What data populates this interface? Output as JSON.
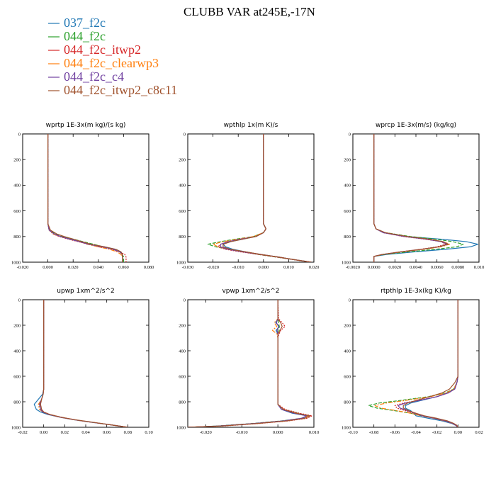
{
  "figure": {
    "title": "CLUBB VAR at245E,-17N"
  },
  "colors": {
    "037_f2c": "#1f77b4",
    "044_f2c": "#2ca02c",
    "044_f2c_itwp2": "#d62728",
    "044_f2c_clearwp3": "#ff7f0e",
    "044_f2c_c4": "#7040a0",
    "044_f2c_itwp2_c8c11": "#a0522d"
  },
  "chart_data": [
    {
      "type": "line",
      "title": "wprtp  1E-3x(m kg)/(s kg)",
      "xlim": [
        -0.02,
        0.08
      ],
      "ylim": [
        1000,
        0
      ],
      "xticks": [
        "-0.020",
        "0.000",
        "0.020",
        "0.040",
        "0.060",
        "0.080"
      ],
      "yticks": [
        "0",
        "200",
        "400",
        "600",
        "800",
        "1000"
      ],
      "y": [
        0,
        200,
        400,
        600,
        700,
        750,
        780,
        800,
        820,
        840,
        860,
        880,
        900,
        920,
        940,
        960,
        975,
        990,
        1000
      ],
      "series": [
        {
          "name": "037_f2c",
          "values": [
            0,
            0,
            0,
            0,
            0,
            0.001,
            0.005,
            0.01,
            0.018,
            0.026,
            0.033,
            0.045,
            0.054,
            0.058,
            0.059,
            0.059,
            0.059,
            0.059,
            0.059
          ]
        },
        {
          "name": "044_f2c",
          "values": [
            0,
            0,
            0,
            0,
            0,
            0.001,
            0.006,
            0.012,
            0.02,
            0.028,
            0.036,
            0.044,
            0.052,
            0.057,
            0.059,
            0.06,
            0.06,
            0.06,
            0.06
          ]
        },
        {
          "name": "044_f2c_itwp2",
          "values": [
            0,
            0,
            0,
            0,
            0,
            0.001,
            0.004,
            0.009,
            0.016,
            0.024,
            0.032,
            0.04,
            0.05,
            0.057,
            0.061,
            0.062,
            0.062,
            0.062,
            0.062
          ]
        },
        {
          "name": "044_f2c_clearwp3",
          "values": [
            0,
            0,
            0,
            0,
            0,
            0.001,
            0.004,
            0.01,
            0.017,
            0.025,
            0.031,
            0.04,
            0.049,
            0.055,
            0.058,
            0.059,
            0.059,
            0.059,
            0.059
          ]
        },
        {
          "name": "044_f2c_c4",
          "values": [
            0,
            0,
            0,
            0,
            0,
            0.001,
            0.005,
            0.01,
            0.017,
            0.025,
            0.032,
            0.043,
            0.052,
            0.057,
            0.059,
            0.059,
            0.059,
            0.059,
            0.059
          ]
        },
        {
          "name": "044_f2c_itwp2_c8c11",
          "values": [
            0,
            0,
            0,
            0,
            0,
            0.002,
            0.007,
            0.013,
            0.02,
            0.027,
            0.034,
            0.045,
            0.054,
            0.058,
            0.059,
            0.059,
            0.059,
            0.059,
            0.059
          ]
        }
      ]
    },
    {
      "type": "line",
      "title": "wpthlp  1x(m K)/s",
      "xlim": [
        -0.03,
        0.02
      ],
      "ylim": [
        1000,
        0
      ],
      "xticks": [
        "-0.030",
        "-0.020",
        "-0.010",
        "0.000",
        "0.010",
        "0.020"
      ],
      "yticks": [
        "0",
        "200",
        "400",
        "600",
        "800",
        "1000"
      ],
      "y": [
        0,
        200,
        400,
        600,
        700,
        740,
        770,
        800,
        820,
        840,
        860,
        880,
        900,
        920,
        940,
        960,
        980,
        1000
      ],
      "series": [
        {
          "name": "037_f2c",
          "values": [
            0,
            0,
            0,
            0,
            0,
            0.001,
            0,
            -0.003,
            -0.008,
            -0.013,
            -0.016,
            -0.015,
            -0.012,
            -0.007,
            -0.001,
            0.006,
            0.012,
            0.019
          ]
        },
        {
          "name": "044_f2c",
          "values": [
            0,
            0,
            0,
            0,
            0,
            0.001,
            0,
            -0.004,
            -0.011,
            -0.017,
            -0.022,
            -0.019,
            -0.014,
            -0.008,
            -0.002,
            0.005,
            0.012,
            0.019
          ]
        },
        {
          "name": "044_f2c_itwp2",
          "values": [
            0,
            0,
            0,
            0,
            0,
            0.001,
            0,
            -0.003,
            -0.009,
            -0.014,
            -0.017,
            -0.018,
            -0.015,
            -0.009,
            -0.002,
            0.005,
            0.012,
            0.019
          ]
        },
        {
          "name": "044_f2c_clearwp3",
          "values": [
            0,
            0,
            0,
            0,
            0,
            0.001,
            0,
            -0.004,
            -0.01,
            -0.016,
            -0.02,
            -0.018,
            -0.013,
            -0.007,
            -0.001,
            0.006,
            0.012,
            0.019
          ]
        },
        {
          "name": "044_f2c_c4",
          "values": [
            0,
            0,
            0,
            0,
            0,
            0.001,
            0,
            -0.003,
            -0.009,
            -0.014,
            -0.017,
            -0.017,
            -0.014,
            -0.008,
            -0.001,
            0.006,
            0.012,
            0.019
          ]
        },
        {
          "name": "044_f2c_itwp2_c8c11",
          "values": [
            0,
            0,
            0,
            0,
            0,
            0.001,
            0,
            -0.003,
            -0.008,
            -0.013,
            -0.016,
            -0.016,
            -0.013,
            -0.007,
            -0.001,
            0.006,
            0.012,
            0.019
          ]
        }
      ]
    },
    {
      "type": "line",
      "title": "wprcp  1E-3x(m/s) (kg/kg)",
      "xlim": [
        -0.002,
        0.01
      ],
      "ylim": [
        1000,
        0
      ],
      "xticks": [
        "-0.0020",
        "0.0000",
        "0.0020",
        "0.0040",
        "0.0060",
        "0.0080",
        "0.010"
      ],
      "yticks": [
        "0",
        "200",
        "400",
        "600",
        "800",
        "1000"
      ],
      "y": [
        0,
        200,
        400,
        600,
        700,
        740,
        770,
        800,
        820,
        840,
        860,
        880,
        900,
        920,
        940,
        955,
        970,
        1000
      ],
      "series": [
        {
          "name": "037_f2c",
          "values": [
            0,
            0,
            0,
            0,
            0,
            0.0002,
            0.0009,
            0.0032,
            0.0063,
            0.0088,
            0.0099,
            0.0092,
            0.0068,
            0.0038,
            0.0012,
            0,
            0,
            0
          ]
        },
        {
          "name": "044_f2c",
          "values": [
            0,
            0,
            0,
            0,
            0,
            0.0002,
            0.0011,
            0.0035,
            0.0058,
            0.0075,
            0.0085,
            0.0079,
            0.0058,
            0.0032,
            0.001,
            0,
            0,
            0
          ]
        },
        {
          "name": "044_f2c_itwp2",
          "values": [
            0,
            0,
            0,
            0,
            0,
            0.0002,
            0.0009,
            0.0028,
            0.0048,
            0.0064,
            0.0068,
            0.006,
            0.0044,
            0.0025,
            0.0008,
            0,
            0,
            0
          ]
        },
        {
          "name": "044_f2c_clearwp3",
          "values": [
            0,
            0,
            0,
            0,
            0,
            0.0002,
            0.001,
            0.0031,
            0.0051,
            0.0066,
            0.0072,
            0.0064,
            0.0047,
            0.0026,
            0.0008,
            0,
            0,
            0
          ]
        },
        {
          "name": "044_f2c_c4",
          "values": [
            0,
            0,
            0,
            0,
            0,
            0.0002,
            0.0009,
            0.0029,
            0.0049,
            0.0064,
            0.007,
            0.0062,
            0.0045,
            0.0025,
            0.0008,
            0,
            0,
            0
          ]
        },
        {
          "name": "044_f2c_itwp2_c8c11",
          "values": [
            0,
            0,
            0,
            0,
            0,
            0.0002,
            0.0011,
            0.0032,
            0.0052,
            0.0066,
            0.0071,
            0.0062,
            0.0045,
            0.0025,
            0.0008,
            0,
            0,
            0
          ]
        }
      ]
    },
    {
      "type": "line",
      "title": "upwp  1xm^2/s^2",
      "xlim": [
        -0.02,
        0.1
      ],
      "ylim": [
        1000,
        0
      ],
      "xticks": [
        "-0.02",
        "0.00",
        "0.02",
        "0.04",
        "0.06",
        "0.08",
        "0.10"
      ],
      "yticks": [
        "0",
        "200",
        "400",
        "600",
        "800",
        "1000"
      ],
      "y": [
        0,
        200,
        400,
        600,
        700,
        740,
        780,
        820,
        860,
        880,
        900,
        920,
        940,
        960,
        980,
        1000
      ],
      "series": [
        {
          "name": "037_f2c",
          "values": [
            0,
            0,
            0,
            0,
            0,
            -0.001,
            -0.005,
            -0.009,
            -0.007,
            -0.003,
            0.004,
            0.015,
            0.028,
            0.045,
            0.063,
            0.08
          ]
        },
        {
          "name": "044_f2c",
          "values": [
            0,
            0,
            0,
            0,
            0,
            -0.0005,
            -0.002,
            -0.004,
            -0.003,
            -0.001,
            0.005,
            0.015,
            0.028,
            0.045,
            0.063,
            0.08
          ]
        },
        {
          "name": "044_f2c_itwp2",
          "values": [
            0,
            0,
            0,
            0,
            0,
            -0.0005,
            -0.002,
            -0.003,
            -0.002,
            0,
            0.006,
            0.016,
            0.029,
            0.046,
            0.063,
            0.08
          ]
        },
        {
          "name": "044_f2c_clearwp3",
          "values": [
            0,
            0,
            0,
            0,
            0,
            -0.0005,
            -0.002,
            -0.005,
            -0.004,
            -0.001,
            0.005,
            0.015,
            0.028,
            0.045,
            0.063,
            0.08
          ]
        },
        {
          "name": "044_f2c_c4",
          "values": [
            0,
            0,
            0,
            0,
            0,
            -0.0005,
            -0.002,
            -0.004,
            -0.003,
            -0.001,
            0.005,
            0.015,
            0.028,
            0.045,
            0.063,
            0.08
          ]
        },
        {
          "name": "044_f2c_itwp2_c8c11",
          "values": [
            0,
            0,
            0,
            0,
            0,
            -0.0005,
            -0.002,
            -0.003,
            -0.002,
            0,
            0.006,
            0.016,
            0.029,
            0.046,
            0.063,
            0.08
          ]
        }
      ]
    },
    {
      "type": "line",
      "title": "vpwp  1xm^2/s^2",
      "xlim": [
        -0.025,
        0.01
      ],
      "ylim": [
        1000,
        0
      ],
      "xticks": [
        "-0.020",
        "-0.010",
        "0.000",
        "0.010"
      ],
      "yticks": [
        "0",
        "200",
        "400",
        "600",
        "800",
        "1000"
      ],
      "y": [
        0,
        150,
        180,
        210,
        240,
        270,
        300,
        400,
        600,
        750,
        820,
        860,
        890,
        910,
        930,
        950,
        970,
        990,
        1000
      ],
      "series": [
        {
          "name": "037_f2c",
          "values": [
            0,
            0,
            -0.0006,
            0.0004,
            -0.0005,
            0,
            0,
            0,
            0,
            0,
            0,
            0.001,
            0.004,
            0.008,
            0.007,
            0.002,
            -0.006,
            -0.016,
            -0.025
          ]
        },
        {
          "name": "044_f2c",
          "values": [
            0,
            0,
            0.0002,
            0.0004,
            0.0003,
            0,
            0,
            0,
            0,
            0,
            0,
            0.0015,
            0.0055,
            0.0085,
            0.0065,
            0.001,
            -0.007,
            -0.017,
            -0.025
          ]
        },
        {
          "name": "044_f2c_itwp2",
          "values": [
            0,
            0.0002,
            0.0012,
            0.002,
            0.0008,
            0.0003,
            0,
            0,
            0,
            0,
            0,
            0.002,
            0.006,
            0.0095,
            0.008,
            0.003,
            -0.005,
            -0.015,
            -0.025
          ]
        },
        {
          "name": "044_f2c_clearwp3",
          "values": [
            0,
            0,
            -0.001,
            -0.0003,
            -0.0015,
            -0.0002,
            0,
            0,
            0,
            0,
            0,
            0.0015,
            0.005,
            0.0085,
            0.007,
            0.002,
            -0.006,
            -0.016,
            -0.025
          ]
        },
        {
          "name": "044_f2c_c4",
          "values": [
            0,
            0,
            -0.0004,
            0.0002,
            -0.0002,
            0,
            0,
            0,
            0,
            0,
            0,
            0.001,
            0.0045,
            0.008,
            0.0065,
            0.0015,
            -0.0065,
            -0.0165,
            -0.025
          ]
        },
        {
          "name": "044_f2c_itwp2_c8c11",
          "values": [
            0,
            0,
            0.0008,
            0.0012,
            0.0006,
            0,
            0,
            0,
            0,
            0,
            0,
            0.0015,
            0.005,
            0.009,
            0.0075,
            0.0025,
            -0.0055,
            -0.0155,
            -0.025
          ]
        }
      ]
    },
    {
      "type": "line",
      "title": "rtpthlp  1E-3x(kg K)/kg",
      "xlim": [
        -0.1,
        0.02
      ],
      "ylim": [
        1000,
        0
      ],
      "xticks": [
        "-0.10",
        "-0.08",
        "-0.06",
        "-0.04",
        "-0.02",
        "0.00",
        "0.02"
      ],
      "yticks": [
        "0",
        "200",
        "400",
        "600",
        "800",
        "1000"
      ],
      "y": [
        0,
        200,
        400,
        600,
        650,
        700,
        730,
        760,
        790,
        810,
        830,
        850,
        870,
        890,
        910,
        930,
        950,
        970,
        985,
        1000
      ],
      "series": [
        {
          "name": "037_f2c",
          "values": [
            0,
            0,
            0,
            0,
            -0.001,
            -0.004,
            -0.01,
            -0.02,
            -0.035,
            -0.045,
            -0.05,
            -0.05,
            -0.045,
            -0.042,
            -0.04,
            -0.028,
            -0.015,
            -0.006,
            -0.002,
            0
          ]
        },
        {
          "name": "044_f2c",
          "values": [
            0,
            0,
            0,
            0,
            -0.001,
            -0.004,
            -0.012,
            -0.028,
            -0.055,
            -0.075,
            -0.085,
            -0.077,
            -0.06,
            -0.045,
            -0.035,
            -0.022,
            -0.012,
            -0.005,
            -0.002,
            0
          ]
        },
        {
          "name": "044_f2c_itwp2",
          "values": [
            0,
            0,
            0,
            0,
            -0.001,
            -0.003,
            -0.009,
            -0.02,
            -0.038,
            -0.052,
            -0.06,
            -0.058,
            -0.05,
            -0.042,
            -0.034,
            -0.022,
            -0.012,
            -0.005,
            -0.002,
            0
          ]
        },
        {
          "name": "044_f2c_clearwp3",
          "values": [
            0,
            0,
            0,
            0,
            -0.001,
            -0.004,
            -0.011,
            -0.026,
            -0.05,
            -0.068,
            -0.079,
            -0.073,
            -0.058,
            -0.045,
            -0.035,
            -0.023,
            -0.013,
            -0.005,
            -0.002,
            0
          ]
        },
        {
          "name": "044_f2c_c4",
          "values": [
            0,
            0,
            0,
            0,
            -0.001,
            -0.003,
            -0.009,
            -0.02,
            -0.037,
            -0.05,
            -0.057,
            -0.055,
            -0.048,
            -0.041,
            -0.034,
            -0.022,
            -0.012,
            -0.005,
            -0.002,
            0
          ]
        },
        {
          "name": "044_f2c_itwp2_c8c11",
          "values": [
            0,
            0,
            0,
            0,
            -0.003,
            -0.008,
            -0.015,
            -0.027,
            -0.04,
            -0.048,
            -0.052,
            -0.052,
            -0.047,
            -0.04,
            -0.032,
            -0.02,
            -0.01,
            -0.004,
            -0.001,
            0
          ]
        }
      ]
    }
  ]
}
